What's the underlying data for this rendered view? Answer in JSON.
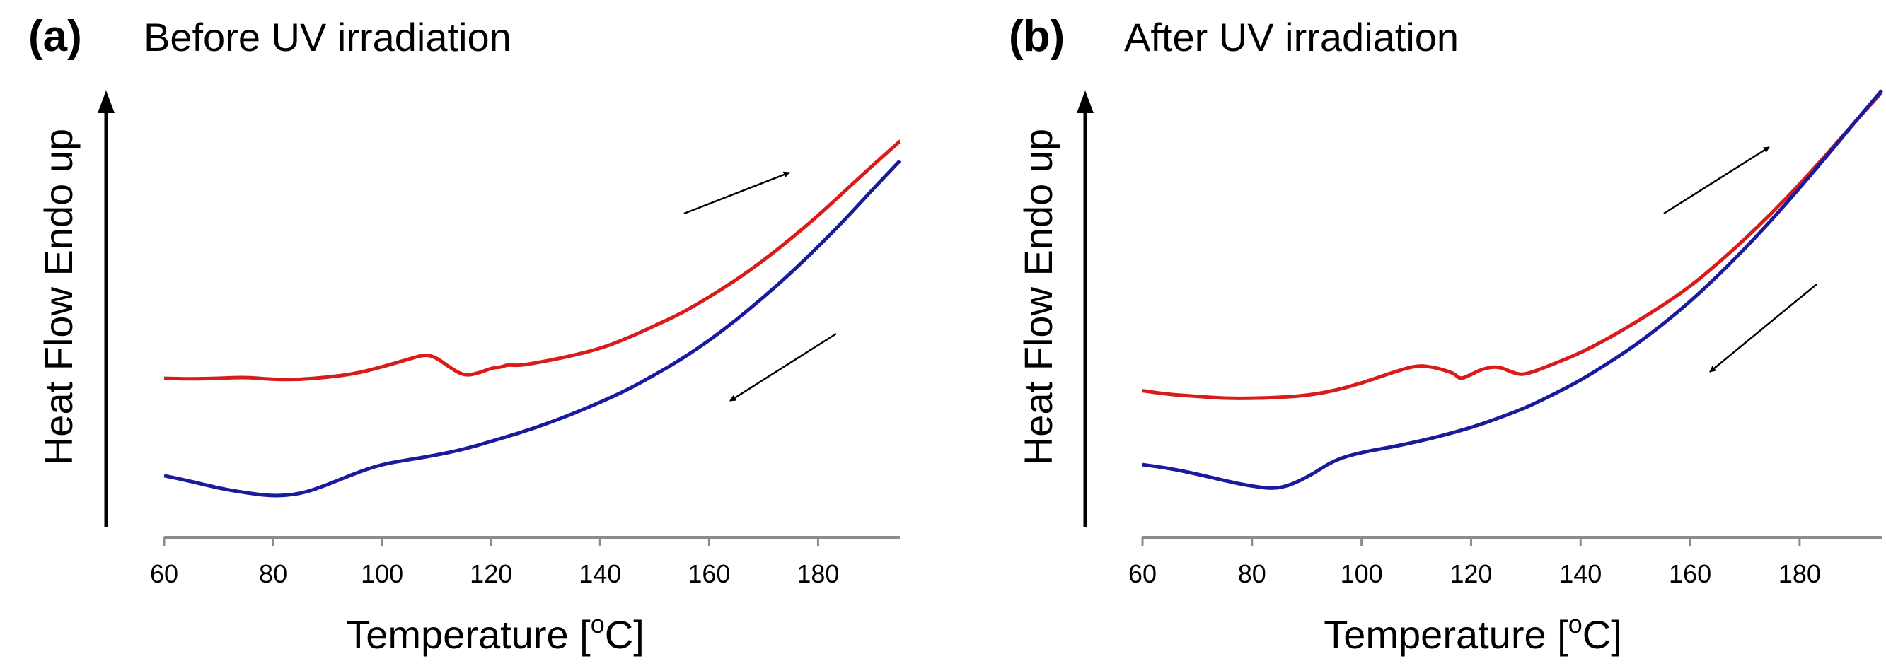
{
  "chart_data": [
    {
      "type": "line",
      "panel": "(a)",
      "title": "Before UV irradiation",
      "xlabel": "Temperature [oC]",
      "ylabel": "Heat Flow Endo up",
      "xlim": [
        60,
        195
      ],
      "ticks": [
        "60",
        "80",
        "100",
        "120",
        "140",
        "160",
        "180"
      ],
      "y_values_shown": false,
      "series": [
        {
          "direction": "heating",
          "color": "#d81c1c",
          "arrow": "up-right",
          "x": [
            60,
            65,
            70,
            75,
            80,
            85,
            90,
            95,
            100,
            105,
            108,
            110,
            112,
            115,
            118,
            120,
            122,
            123,
            125,
            130,
            135,
            140,
            145,
            150,
            155,
            160,
            165,
            170,
            175,
            180,
            185,
            190,
            195
          ],
          "y": [
            9.3,
            9.25,
            9.3,
            9.4,
            9.2,
            9.2,
            9.4,
            9.7,
            10.3,
            11.0,
            11.4,
            11.1,
            10.4,
            9.5,
            9.8,
            10.2,
            10.3,
            10.5,
            10.4,
            10.8,
            11.3,
            11.9,
            12.8,
            13.9,
            15.0,
            16.4,
            17.9,
            19.6,
            21.5,
            23.5,
            25.7,
            27.9,
            30.0
          ]
        },
        {
          "direction": "cooling",
          "color": "#1a1a9c",
          "arrow": "down-left",
          "x": [
            60,
            65,
            70,
            75,
            80,
            85,
            90,
            95,
            100,
            105,
            110,
            115,
            120,
            125,
            130,
            135,
            140,
            145,
            150,
            155,
            160,
            165,
            170,
            175,
            180,
            185,
            190,
            195
          ],
          "y": [
            0.8,
            0.3,
            -0.3,
            -0.7,
            -1.0,
            -0.8,
            0.0,
            1.0,
            1.8,
            2.2,
            2.6,
            3.1,
            3.8,
            4.5,
            5.3,
            6.2,
            7.2,
            8.3,
            9.6,
            11.0,
            12.6,
            14.4,
            16.4,
            18.5,
            20.8,
            23.2,
            25.8,
            28.3
          ]
        }
      ]
    },
    {
      "type": "line",
      "panel": "(b)",
      "title": "After UV irradiation",
      "xlabel": "Temperature [oC]",
      "ylabel": "Heat Flow Endo up",
      "xlim": [
        60,
        195
      ],
      "ticks": [
        "60",
        "80",
        "100",
        "120",
        "140",
        "160",
        "180"
      ],
      "y_values_shown": false,
      "series": [
        {
          "direction": "heating",
          "color": "#d81c1c",
          "arrow": "up-right",
          "x": [
            60,
            65,
            70,
            75,
            80,
            85,
            90,
            95,
            100,
            105,
            110,
            113,
            115,
            117,
            118,
            120,
            122,
            125,
            128,
            130,
            135,
            140,
            145,
            150,
            155,
            160,
            165,
            170,
            175,
            180,
            185,
            190,
            195
          ],
          "y": [
            9.5,
            9.1,
            8.9,
            8.7,
            8.7,
            8.8,
            9.0,
            9.5,
            10.3,
            11.3,
            12.2,
            12.0,
            11.7,
            11.3,
            10.7,
            11.2,
            11.8,
            12.1,
            11.3,
            11.2,
            12.3,
            13.5,
            15.0,
            16.7,
            18.5,
            20.5,
            22.9,
            25.5,
            28.3,
            31.3,
            34.5,
            37.8,
            41.0
          ]
        },
        {
          "direction": "cooling",
          "color": "#1a1a9c",
          "arrow": "down-left",
          "x": [
            60,
            65,
            70,
            75,
            80,
            85,
            90,
            95,
            100,
            105,
            110,
            115,
            120,
            125,
            130,
            135,
            140,
            145,
            150,
            155,
            160,
            165,
            170,
            175,
            180,
            185,
            190,
            195
          ],
          "y": [
            1.7,
            1.3,
            0.7,
            0.0,
            -0.6,
            -0.9,
            0.3,
            2.2,
            3.0,
            3.5,
            4.1,
            4.8,
            5.6,
            6.6,
            7.7,
            9.1,
            10.6,
            12.4,
            14.3,
            16.5,
            18.9,
            21.6,
            24.5,
            27.6,
            30.9,
            34.3,
            37.8,
            41.2
          ]
        }
      ]
    }
  ]
}
